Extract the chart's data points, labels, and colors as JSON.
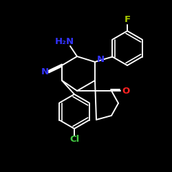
{
  "bg_color": "#000000",
  "bond_color": "#ffffff",
  "atom_colors": {
    "N": "#3333ff",
    "NH2": "#3333ff",
    "O": "#ff2222",
    "F": "#aacc00",
    "Cl": "#44cc44",
    "C": "#ffffff"
  }
}
